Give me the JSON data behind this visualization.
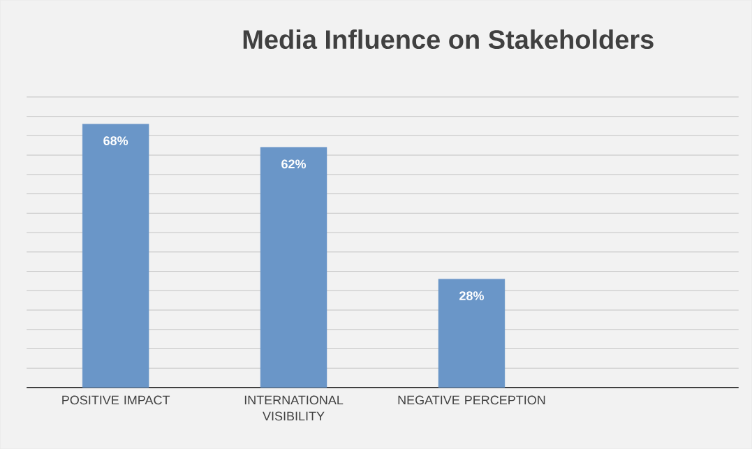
{
  "chart_data": {
    "type": "bar",
    "title": "Media Influence on Stakeholders",
    "categories": [
      "POSITIVE IMPACT",
      "INTERNATIONAL VISIBILITY",
      "NEGATIVE PERCEPTION",
      null
    ],
    "values": [
      68,
      62,
      28,
      null
    ],
    "value_labels": [
      "68%",
      "62%",
      "28%",
      null
    ],
    "color": "#6a96c8",
    "grid": "y",
    "tick_labels": "x"
  }
}
